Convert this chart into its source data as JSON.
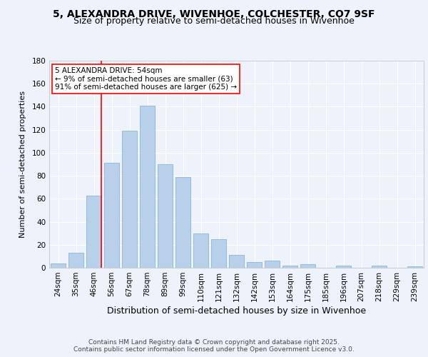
{
  "title": "5, ALEXANDRA DRIVE, WIVENHOE, COLCHESTER, CO7 9SF",
  "subtitle": "Size of property relative to semi-detached houses in Wivenhoe",
  "xlabel": "Distribution of semi-detached houses by size in Wivenhoe",
  "ylabel": "Number of semi-detached properties",
  "categories": [
    "24sqm",
    "35sqm",
    "46sqm",
    "56sqm",
    "67sqm",
    "78sqm",
    "89sqm",
    "99sqm",
    "110sqm",
    "121sqm",
    "132sqm",
    "142sqm",
    "153sqm",
    "164sqm",
    "175sqm",
    "185sqm",
    "196sqm",
    "207sqm",
    "218sqm",
    "229sqm",
    "239sqm"
  ],
  "values": [
    4,
    13,
    63,
    91,
    119,
    141,
    90,
    79,
    30,
    25,
    11,
    5,
    6,
    2,
    3,
    0,
    2,
    0,
    2,
    0,
    1
  ],
  "bar_color": "#b8d0ea",
  "bar_edge_color": "#7aafd4",
  "vline_x_index": 2,
  "vline_color": "red",
  "annotation_line1": "5 ALEXANDRA DRIVE: 54sqm",
  "annotation_line2": "← 9% of semi-detached houses are smaller (63)",
  "annotation_line3": "91% of semi-detached houses are larger (625) →",
  "ylim": [
    0,
    180
  ],
  "yticks": [
    0,
    20,
    40,
    60,
    80,
    100,
    120,
    140,
    160,
    180
  ],
  "background_color": "#eef2fb",
  "grid_color": "#ffffff",
  "footer_text": "Contains HM Land Registry data © Crown copyright and database right 2025.\nContains public sector information licensed under the Open Government Licence v3.0.",
  "title_fontsize": 10,
  "subtitle_fontsize": 9,
  "xlabel_fontsize": 9,
  "ylabel_fontsize": 8,
  "tick_fontsize": 7.5,
  "annotation_fontsize": 7.5,
  "footer_fontsize": 6.5
}
